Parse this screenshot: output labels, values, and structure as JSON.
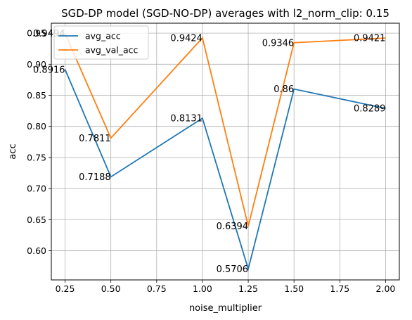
{
  "chart_data": {
    "type": "line",
    "title": "SGD-DP model (SGD-NO-DP) averages with l2_norm_clip: 0.15",
    "xlabel": "noise_multiplier",
    "ylabel": "acc",
    "x": [
      0.25,
      0.5,
      1.0,
      1.25,
      1.5,
      2.0
    ],
    "xlim": [
      0.175,
      2.075
    ],
    "ylim": [
      0.553,
      0.966
    ],
    "xticks": [
      "0.25",
      "0.50",
      "0.75",
      "1.00",
      "1.25",
      "1.50",
      "1.75",
      "2.00"
    ],
    "xtick_values": [
      0.25,
      0.5,
      0.75,
      1.0,
      1.25,
      1.5,
      1.75,
      2.0
    ],
    "yticks": [
      "0.60",
      "0.65",
      "0.70",
      "0.75",
      "0.80",
      "0.85",
      "0.90",
      "0.95"
    ],
    "ytick_values": [
      0.6,
      0.65,
      0.7,
      0.75,
      0.8,
      0.85,
      0.9,
      0.95
    ],
    "grid": true,
    "legend": "top-left",
    "series": [
      {
        "name": "avg_acc",
        "color": "#1f77b4",
        "values": [
          0.8916,
          0.7188,
          0.8131,
          0.5706,
          0.86,
          0.8289
        ],
        "labels": [
          "0.8916",
          "0.7188",
          "0.8131",
          "0.5706",
          "0.86",
          "0.8289"
        ]
      },
      {
        "name": "avg_val_acc",
        "color": "#ff7f0e",
        "values": [
          0.9494,
          0.7811,
          0.9424,
          0.6394,
          0.9346,
          0.9421
        ],
        "labels": [
          "0.9494",
          "0.7811",
          "0.9424",
          "0.6394",
          "0.9346",
          "0.9421"
        ]
      }
    ]
  }
}
